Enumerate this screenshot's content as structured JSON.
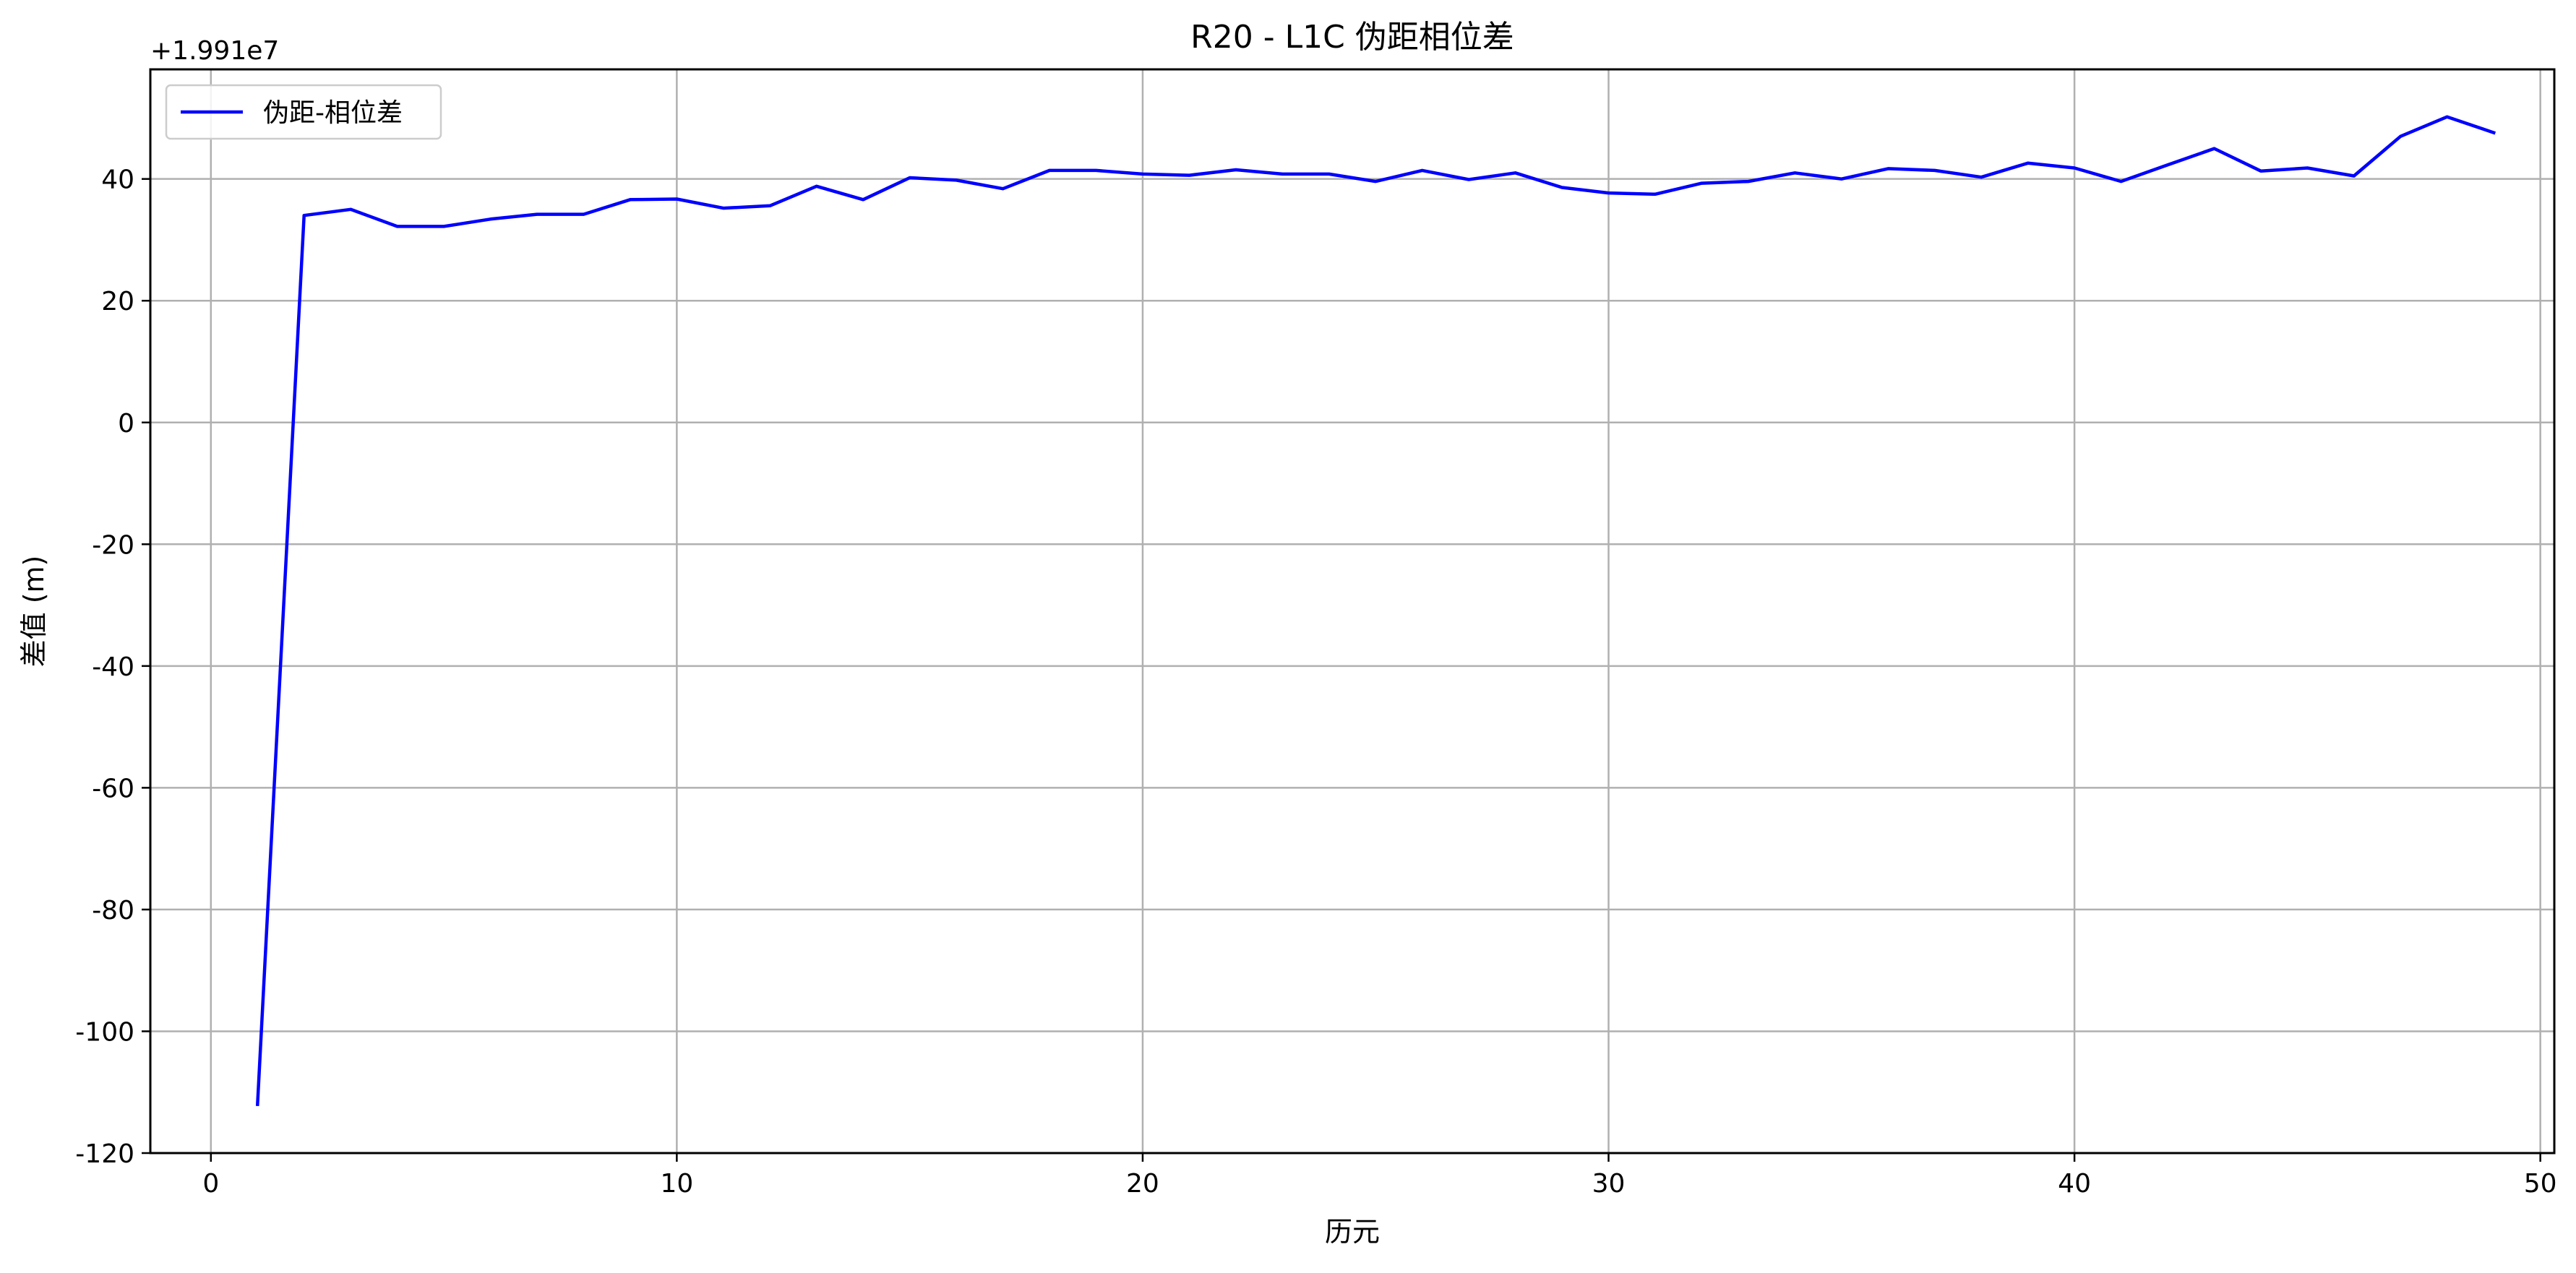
{
  "chart_data": {
    "type": "line",
    "title": "R20 - L1C 伪距相位差",
    "xlabel": "历元",
    "ylabel": "差值 (m)",
    "y_offset_text": "+1.991e7",
    "xlim": [
      -1.3,
      50.3
    ],
    "ylim": [
      -120,
      58
    ],
    "x_ticks": [
      0,
      10,
      20,
      30,
      40,
      50
    ],
    "x_tick_labels": [
      "0",
      "10",
      "20",
      "30",
      "40",
      "50"
    ],
    "y_ticks": [
      40,
      20,
      0,
      -20,
      -40,
      -60,
      -80,
      -100,
      -120
    ],
    "y_tick_labels": [
      "40",
      "20",
      "0",
      "-20",
      "-40",
      "-60",
      "-80",
      "-100",
      "-120"
    ],
    "grid": true,
    "legend": {
      "position": "top-left"
    },
    "series": [
      {
        "name": "伪距-相位差",
        "color": "#0000ff",
        "x": [
          1,
          2,
          3,
          4,
          5,
          6,
          7,
          8,
          9,
          10,
          11,
          12,
          13,
          14,
          15,
          16,
          17,
          18,
          19,
          20,
          21,
          22,
          23,
          24,
          25,
          26,
          27,
          28,
          29,
          30,
          31,
          32,
          33,
          34,
          35,
          36,
          37,
          38,
          39,
          40,
          41,
          42,
          43,
          44,
          45,
          46,
          47,
          48,
          49
        ],
        "y": [
          -112,
          34.0,
          35.0,
          32.2,
          32.2,
          33.4,
          34.2,
          34.2,
          36.6,
          36.7,
          35.2,
          35.6,
          38.8,
          36.6,
          40.2,
          39.8,
          38.4,
          41.4,
          41.4,
          40.8,
          40.6,
          41.5,
          40.8,
          40.8,
          39.6,
          41.4,
          39.9,
          41.0,
          38.6,
          37.7,
          37.5,
          39.3,
          39.6,
          41.0,
          40.0,
          41.7,
          41.4,
          40.3,
          42.6,
          41.8,
          39.6,
          42.3,
          45.0,
          41.3,
          41.8,
          40.5,
          47.0,
          50.2,
          47.6
        ]
      }
    ]
  }
}
